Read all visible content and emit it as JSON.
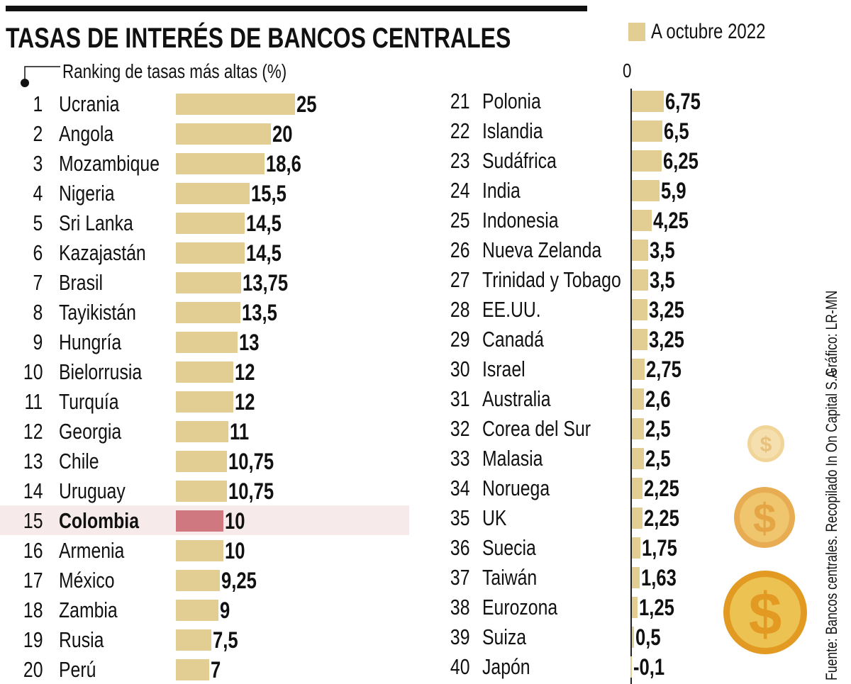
{
  "title": "TASAS DE INTERÉS DE BANCOS CENTRALES",
  "subtitle": "Ranking de tasas más altas (%)",
  "legend": "A octubre 2022",
  "axis_zero_label": "0",
  "source": "Fuente: Bancos centrales. Recopilado In On Capital S.A",
  "credit": "Gráfico: LR-MN",
  "colors": {
    "bar": "#e2cd93",
    "highlight_bar": "#d07880",
    "highlight_band": "#f7eaea",
    "coin": "#e9a93a"
  },
  "chart_data": {
    "type": "bar",
    "orientation": "horizontal",
    "title": "TASAS DE INTERÉS DE BANCOS CENTRALES",
    "subtitle": "Ranking de tasas más altas (%)",
    "series": [
      {
        "name": "A octubre 2022"
      }
    ],
    "highlight": "Colombia",
    "rows": [
      {
        "rank": "1",
        "country": "Ucrania",
        "value": 25,
        "label": "25"
      },
      {
        "rank": "2",
        "country": "Angola",
        "value": 20,
        "label": "20"
      },
      {
        "rank": "3",
        "country": "Mozambique",
        "value": 18.6,
        "label": "18,6"
      },
      {
        "rank": "4",
        "country": "Nigeria",
        "value": 15.5,
        "label": "15,5"
      },
      {
        "rank": "5",
        "country": "Sri Lanka",
        "value": 14.5,
        "label": "14,5"
      },
      {
        "rank": "6",
        "country": "Kazajastán",
        "value": 14.5,
        "label": "14,5"
      },
      {
        "rank": "7",
        "country": "Brasil",
        "value": 13.75,
        "label": "13,75"
      },
      {
        "rank": "8",
        "country": "Tayikistán",
        "value": 13.5,
        "label": "13,5"
      },
      {
        "rank": "9",
        "country": "Hungría",
        "value": 13,
        "label": "13"
      },
      {
        "rank": "10",
        "country": "Bielorrusia",
        "value": 12,
        "label": "12"
      },
      {
        "rank": "11",
        "country": "Turquía",
        "value": 12,
        "label": "12"
      },
      {
        "rank": "12",
        "country": "Georgia",
        "value": 11,
        "label": "11"
      },
      {
        "rank": "13",
        "country": "Chile",
        "value": 10.75,
        "label": "10,75"
      },
      {
        "rank": "14",
        "country": "Uruguay",
        "value": 10.75,
        "label": "10,75"
      },
      {
        "rank": "15",
        "country": "Colombia",
        "value": 10,
        "label": "10"
      },
      {
        "rank": "16",
        "country": "Armenia",
        "value": 10,
        "label": "10"
      },
      {
        "rank": "17",
        "country": "México",
        "value": 9.25,
        "label": "9,25"
      },
      {
        "rank": "18",
        "country": "Zambia",
        "value": 9,
        "label": "9"
      },
      {
        "rank": "19",
        "country": "Rusia",
        "value": 7.5,
        "label": "7,5"
      },
      {
        "rank": "20",
        "country": "Perú",
        "value": 7,
        "label": "7"
      },
      {
        "rank": "21",
        "country": "Polonia",
        "value": 6.75,
        "label": "6,75"
      },
      {
        "rank": "22",
        "country": "Islandia",
        "value": 6.5,
        "label": "6,5"
      },
      {
        "rank": "23",
        "country": "Sudáfrica",
        "value": 6.25,
        "label": "6,25"
      },
      {
        "rank": "24",
        "country": "India",
        "value": 5.9,
        "label": "5,9"
      },
      {
        "rank": "25",
        "country": "Indonesia",
        "value": 4.25,
        "label": "4,25"
      },
      {
        "rank": "26",
        "country": "Nueva Zelanda",
        "value": 3.5,
        "label": "3,5"
      },
      {
        "rank": "27",
        "country": "Trinidad y Tobago",
        "value": 3.5,
        "label": "3,5"
      },
      {
        "rank": "28",
        "country": "EE.UU.",
        "value": 3.25,
        "label": "3,25"
      },
      {
        "rank": "29",
        "country": "Canadá",
        "value": 3.25,
        "label": "3,25"
      },
      {
        "rank": "30",
        "country": "Israel",
        "value": 2.75,
        "label": "2,75"
      },
      {
        "rank": "31",
        "country": "Australia",
        "value": 2.6,
        "label": "2,6"
      },
      {
        "rank": "32",
        "country": "Corea del Sur",
        "value": 2.5,
        "label": "2,5"
      },
      {
        "rank": "33",
        "country": "Malasia",
        "value": 2.5,
        "label": "2,5"
      },
      {
        "rank": "34",
        "country": "Noruega",
        "value": 2.25,
        "label": "2,25"
      },
      {
        "rank": "35",
        "country": "UK",
        "value": 2.25,
        "label": "2,25"
      },
      {
        "rank": "36",
        "country": "Suecia",
        "value": 1.75,
        "label": "1,75"
      },
      {
        "rank": "37",
        "country": "Taiwán",
        "value": 1.63,
        "label": "1,63"
      },
      {
        "rank": "38",
        "country": "Eurozona",
        "value": 1.25,
        "label": "1,25"
      },
      {
        "rank": "39",
        "country": "Suiza",
        "value": 0.5,
        "label": "0,5"
      },
      {
        "rank": "40",
        "country": "Japón",
        "value": -0.1,
        "label": "-0,1"
      }
    ]
  }
}
